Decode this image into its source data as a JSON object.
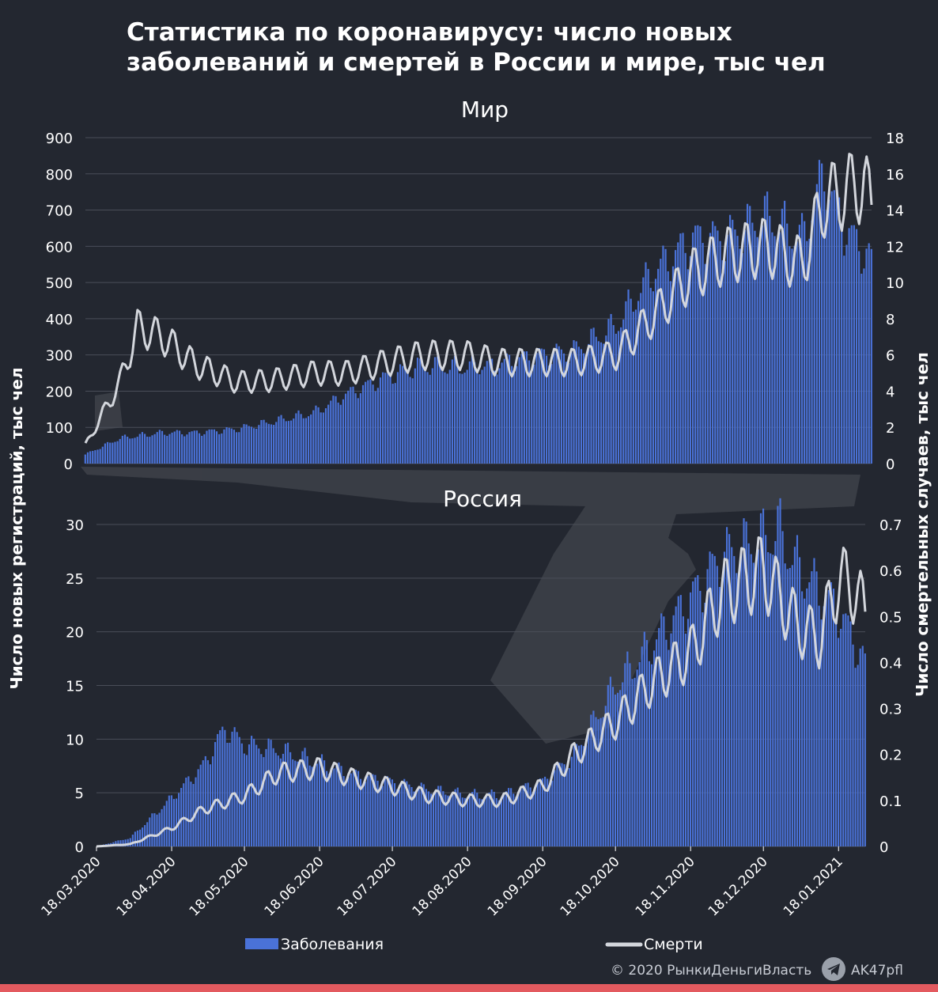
{
  "title": "Статистика по коронавирусу: число новых\nзаболеваний и смертей в России и мире, тыс чел",
  "colors": {
    "background": "#232730",
    "cases": "#4a72d8",
    "deaths": "#d3d6dc",
    "accent_bar": "#e35a5f",
    "grid": "#4a4e58"
  },
  "chart_data": [
    {
      "name": "Мир",
      "type": "bar+line",
      "panel_title": "Мир",
      "x_range": [
        "18.03.2020",
        "29.01.2021"
      ],
      "left_axis": {
        "range": [
          0,
          900
        ],
        "ticks": [
          "0",
          "100",
          "200",
          "300",
          "400",
          "500",
          "600",
          "700",
          "800",
          "900"
        ]
      },
      "right_axis": {
        "range": [
          0,
          18
        ],
        "ticks": [
          "0",
          "2",
          "4",
          "6",
          "8",
          "10",
          "12",
          "14",
          "16",
          "18"
        ]
      },
      "series": [
        {
          "name": "Заболевания",
          "type": "bar",
          "axis": "left",
          "points": [
            [
              "18.03.2020",
              25
            ],
            [
              "01.04.2020",
              70
            ],
            [
              "18.04.2020",
              85
            ],
            [
              "01.05.2020",
              85
            ],
            [
              "18.05.2020",
              95
            ],
            [
              "01.06.2020",
              115
            ],
            [
              "18.06.2020",
              140
            ],
            [
              "01.07.2020",
              190
            ],
            [
              "18.07.2020",
              240
            ],
            [
              "01.08.2020",
              270
            ],
            [
              "18.08.2020",
              265
            ],
            [
              "01.09.2020",
              275
            ],
            [
              "18.09.2020",
              300
            ],
            [
              "01.10.2020",
              310
            ],
            [
              "18.10.2020",
              380
            ],
            [
              "01.11.2020",
              520
            ],
            [
              "18.11.2020",
              620
            ],
            [
              "01.12.2020",
              620
            ],
            [
              "18.12.2020",
              680
            ],
            [
              "01.01.2021",
              620
            ],
            [
              "10.01.2021",
              800
            ],
            [
              "18.01.2021",
              650
            ],
            [
              "29.01.2021",
              560
            ]
          ]
        },
        {
          "name": "Смерти",
          "type": "line",
          "axis": "right",
          "points": [
            [
              "18.03.2020",
              1
            ],
            [
              "01.04.2020",
              4.5
            ],
            [
              "08.04.2020",
              7.5
            ],
            [
              "18.04.2020",
              7
            ],
            [
              "01.05.2020",
              5.5
            ],
            [
              "18.05.2020",
              4.5
            ],
            [
              "01.06.2020",
              4.6
            ],
            [
              "18.06.2020",
              5
            ],
            [
              "01.07.2020",
              5
            ],
            [
              "18.07.2020",
              5.6
            ],
            [
              "01.08.2020",
              6
            ],
            [
              "18.08.2020",
              6
            ],
            [
              "01.09.2020",
              5.6
            ],
            [
              "18.09.2020",
              5.6
            ],
            [
              "01.10.2020",
              5.6
            ],
            [
              "18.10.2020",
              6
            ],
            [
              "01.11.2020",
              8
            ],
            [
              "18.11.2020",
              10.5
            ],
            [
              "01.12.2020",
              11.5
            ],
            [
              "18.12.2020",
              12
            ],
            [
              "01.01.2021",
              11
            ],
            [
              "10.01.2021",
              14.5
            ],
            [
              "18.01.2021",
              15
            ],
            [
              "26.01.2021",
              15.5
            ],
            [
              "29.01.2021",
              14
            ]
          ]
        }
      ]
    },
    {
      "name": "Россия",
      "type": "bar+line",
      "panel_title": "Россия",
      "x_range": [
        "18.03.2020",
        "29.01.2021"
      ],
      "x_ticks": [
        "18.03.2020",
        "18.04.2020",
        "18.05.2020",
        "18.06.2020",
        "18.07.2020",
        "18.08.2020",
        "18.09.2020",
        "18.10.2020",
        "18.11.2020",
        "18.12.2020",
        "18.01.2021"
      ],
      "left_axis": {
        "range": [
          0,
          30
        ],
        "ticks": [
          "0",
          "5",
          "10",
          "15",
          "20",
          "25",
          "30"
        ]
      },
      "right_axis": {
        "range": [
          0,
          0.7
        ],
        "ticks": [
          "0",
          "0.1",
          "0.2",
          "0.3",
          "0.4",
          "0.5",
          "0.6",
          "0.7"
        ]
      },
      "series": [
        {
          "name": "Заболевания",
          "type": "bar",
          "axis": "left",
          "points": [
            [
              "18.03.2020",
              0
            ],
            [
              "01.04.2020",
              0.8
            ],
            [
              "18.04.2020",
              4.5
            ],
            [
              "01.05.2020",
              7.5
            ],
            [
              "10.05.2020",
              11
            ],
            [
              "18.05.2020",
              9.5
            ],
            [
              "01.06.2020",
              9
            ],
            [
              "18.06.2020",
              7.8
            ],
            [
              "01.07.2020",
              6.7
            ],
            [
              "18.07.2020",
              6
            ],
            [
              "01.08.2020",
              5.3
            ],
            [
              "18.08.2020",
              4.8
            ],
            [
              "01.09.2020",
              4.8
            ],
            [
              "18.09.2020",
              6
            ],
            [
              "01.10.2020",
              8.5
            ],
            [
              "18.10.2020",
              15
            ],
            [
              "01.11.2020",
              18.5
            ],
            [
              "18.11.2020",
              23
            ],
            [
              "01.12.2020",
              27
            ],
            [
              "18.12.2020",
              28.5
            ],
            [
              "24.12.2020",
              29.5
            ],
            [
              "01.01.2021",
              26
            ],
            [
              "18.01.2021",
              22
            ],
            [
              "29.01.2021",
              17
            ]
          ]
        },
        {
          "name": "Смерти",
          "type": "line",
          "axis": "right",
          "points": [
            [
              "18.03.2020",
              0
            ],
            [
              "01.04.2020",
              0.005
            ],
            [
              "18.04.2020",
              0.04
            ],
            [
              "01.05.2020",
              0.08
            ],
            [
              "18.05.2020",
              0.11
            ],
            [
              "01.06.2020",
              0.16
            ],
            [
              "18.06.2020",
              0.17
            ],
            [
              "01.07.2020",
              0.15
            ],
            [
              "18.07.2020",
              0.13
            ],
            [
              "01.08.2020",
              0.11
            ],
            [
              "18.08.2020",
              0.1
            ],
            [
              "01.09.2020",
              0.1
            ],
            [
              "18.09.2020",
              0.13
            ],
            [
              "01.10.2020",
              0.2
            ],
            [
              "18.10.2020",
              0.27
            ],
            [
              "01.11.2020",
              0.35
            ],
            [
              "18.11.2020",
              0.42
            ],
            [
              "01.12.2020",
              0.55
            ],
            [
              "18.12.2020",
              0.6
            ],
            [
              "01.01.2021",
              0.48
            ],
            [
              "10.01.2021",
              0.45
            ],
            [
              "18.01.2021",
              0.58
            ],
            [
              "25.01.2021",
              0.56
            ],
            [
              "29.01.2021",
              0.5
            ]
          ]
        }
      ]
    }
  ],
  "axis_titles": {
    "left": "Число новых регистраций, тыс чел",
    "right": "Число смертельных случаев, тыс чел"
  },
  "legend": {
    "cases": "Заболевания",
    "deaths": "Смерти"
  },
  "footer": {
    "copyright": "© 2020  РынкиДеньгиВласть",
    "handle": "AK47pfl"
  }
}
